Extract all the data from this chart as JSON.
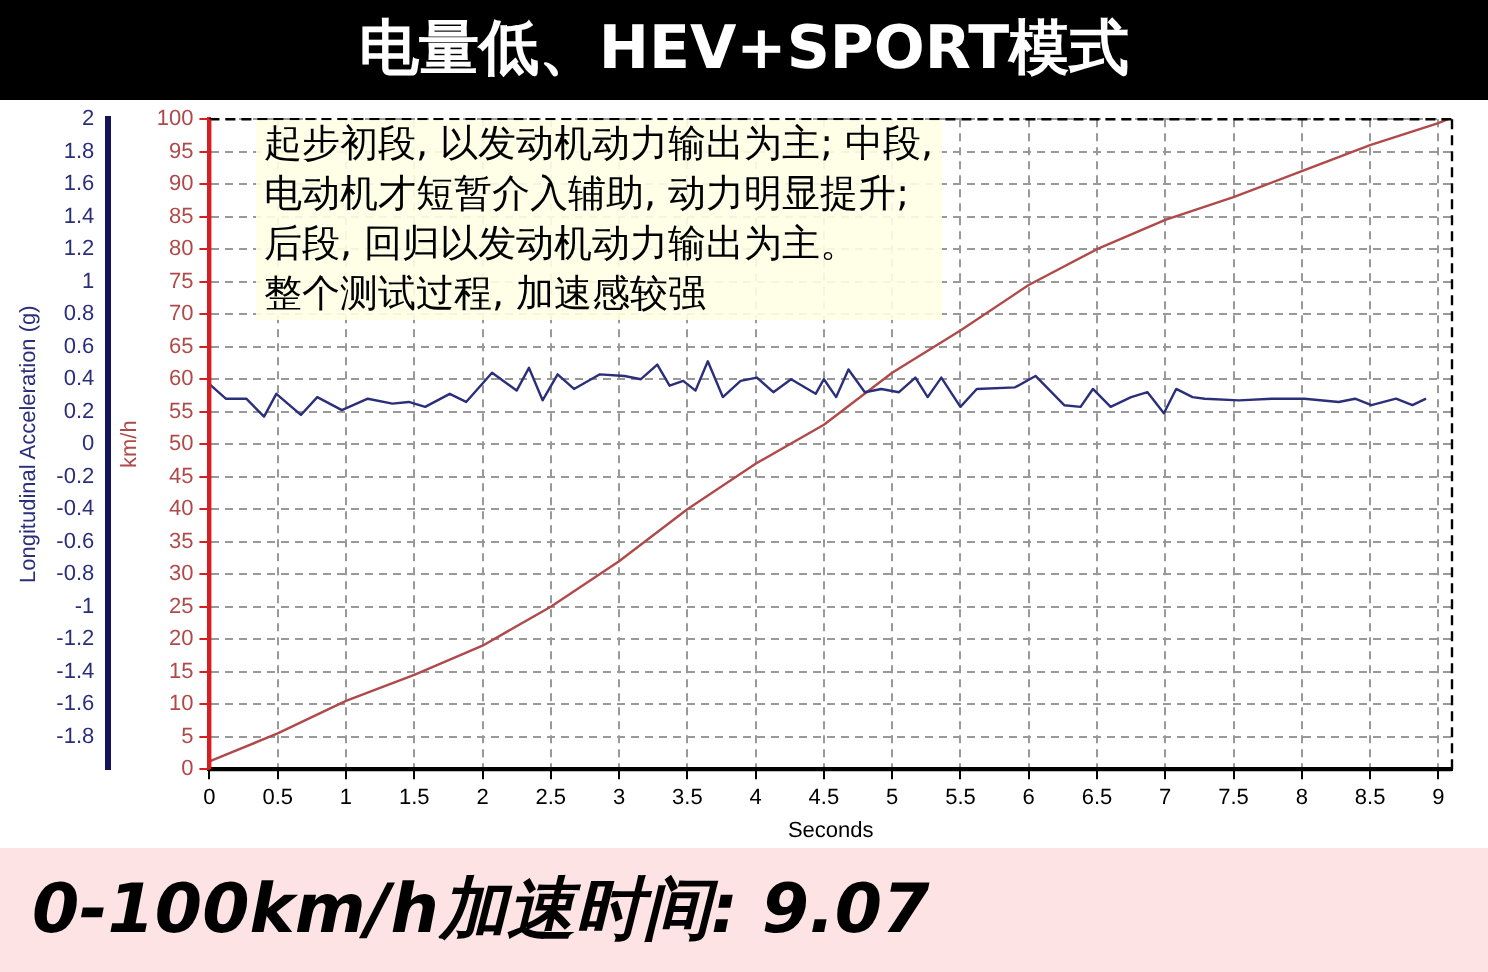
{
  "chart_data": {
    "type": "line",
    "title": "电量低、HEV+SPORT模式",
    "xlabel": "Seconds",
    "ylabel": "Longitudinal Acceleration (g)",
    "y2label": "km/h",
    "xlim": [
      0,
      9.1
    ],
    "xticks": [
      0,
      0.5,
      1,
      1.5,
      2,
      2.5,
      3,
      3.5,
      4,
      4.5,
      5,
      5.5,
      6,
      6.5,
      7,
      7.5,
      8,
      8.5,
      9
    ],
    "ylim": [
      -2,
      2
    ],
    "yticks": [
      -1.8,
      -1.6,
      -1.4,
      -1.2,
      -1,
      -0.8,
      -0.6,
      -0.4,
      -0.2,
      0,
      0.2,
      0.4,
      0.6,
      0.8,
      1,
      1.2,
      1.4,
      1.6,
      1.8,
      2
    ],
    "y2lim": [
      0,
      100
    ],
    "y2ticks": [
      0,
      5,
      10,
      15,
      20,
      25,
      30,
      35,
      40,
      45,
      50,
      55,
      60,
      65,
      70,
      75,
      80,
      85,
      90,
      95,
      100
    ],
    "grid": true,
    "legend": false,
    "marker": "none",
    "line_style": "solid",
    "series": [
      {
        "color": "#2b2f7a",
        "x": [
          0,
          0.12,
          0.27,
          0.4,
          0.49,
          0.67,
          0.79,
          0.97,
          1.16,
          1.34,
          1.46,
          1.58,
          1.76,
          1.88,
          2.07,
          2.25,
          2.34,
          2.44,
          2.55,
          2.67,
          2.86,
          3.04,
          3.16,
          3.28,
          3.37,
          3.47,
          3.56,
          3.65,
          3.76,
          3.89,
          4.01,
          4.13,
          4.26,
          4.44,
          4.5,
          4.59,
          4.68,
          4.8,
          4.92,
          5.05,
          5.17,
          5.26,
          5.36,
          5.5,
          5.62,
          5.9,
          6.05,
          6.26,
          6.38,
          6.47,
          6.6,
          6.75,
          6.87,
          6.99,
          7.08,
          7.2,
          7.29,
          7.54,
          7.78,
          8.02,
          8.27,
          8.39,
          8.51,
          8.69,
          8.81,
          8.91
        ],
        "values": [
          0.37,
          0.28,
          0.28,
          0.17,
          0.31,
          0.18,
          0.29,
          0.21,
          0.28,
          0.25,
          0.26,
          0.23,
          0.31,
          0.26,
          0.44,
          0.33,
          0.47,
          0.27,
          0.43,
          0.34,
          0.43,
          0.42,
          0.4,
          0.49,
          0.36,
          0.39,
          0.33,
          0.51,
          0.29,
          0.39,
          0.41,
          0.32,
          0.4,
          0.31,
          0.4,
          0.29,
          0.46,
          0.32,
          0.34,
          0.32,
          0.41,
          0.29,
          0.41,
          0.23,
          0.34,
          0.35,
          0.42,
          0.24,
          0.23,
          0.34,
          0.23,
          0.29,
          0.32,
          0.19,
          0.34,
          0.29,
          0.28,
          0.27,
          0.28,
          0.28,
          0.26,
          0.28,
          0.24,
          0.28,
          0.24,
          0.28
        ]
      },
      {
        "color": "#b04a4a",
        "axis": "y2",
        "x": [
          0,
          0.5,
          1,
          1.5,
          2,
          2.5,
          3,
          3.5,
          4,
          4.5,
          5,
          5.5,
          6,
          6.5,
          7,
          7.5,
          8,
          8.5,
          9,
          9.07
        ],
        "values": [
          1.2,
          5.5,
          10.5,
          14.5,
          19,
          25,
          32,
          40,
          47,
          53,
          61,
          67.5,
          74.5,
          80,
          84.5,
          88,
          92,
          96,
          99.4,
          100
        ]
      }
    ],
    "annotations": [
      "起步初段, 以发动机动力输出为主; 中段,",
      "电动机才短暂介入辅助, 动力明显提升;",
      "后段, 回归以发动机动力输出为主。",
      "整个测试过程, 加速感较强",
      "0-100km/h加速时间: 9.07"
    ]
  }
}
